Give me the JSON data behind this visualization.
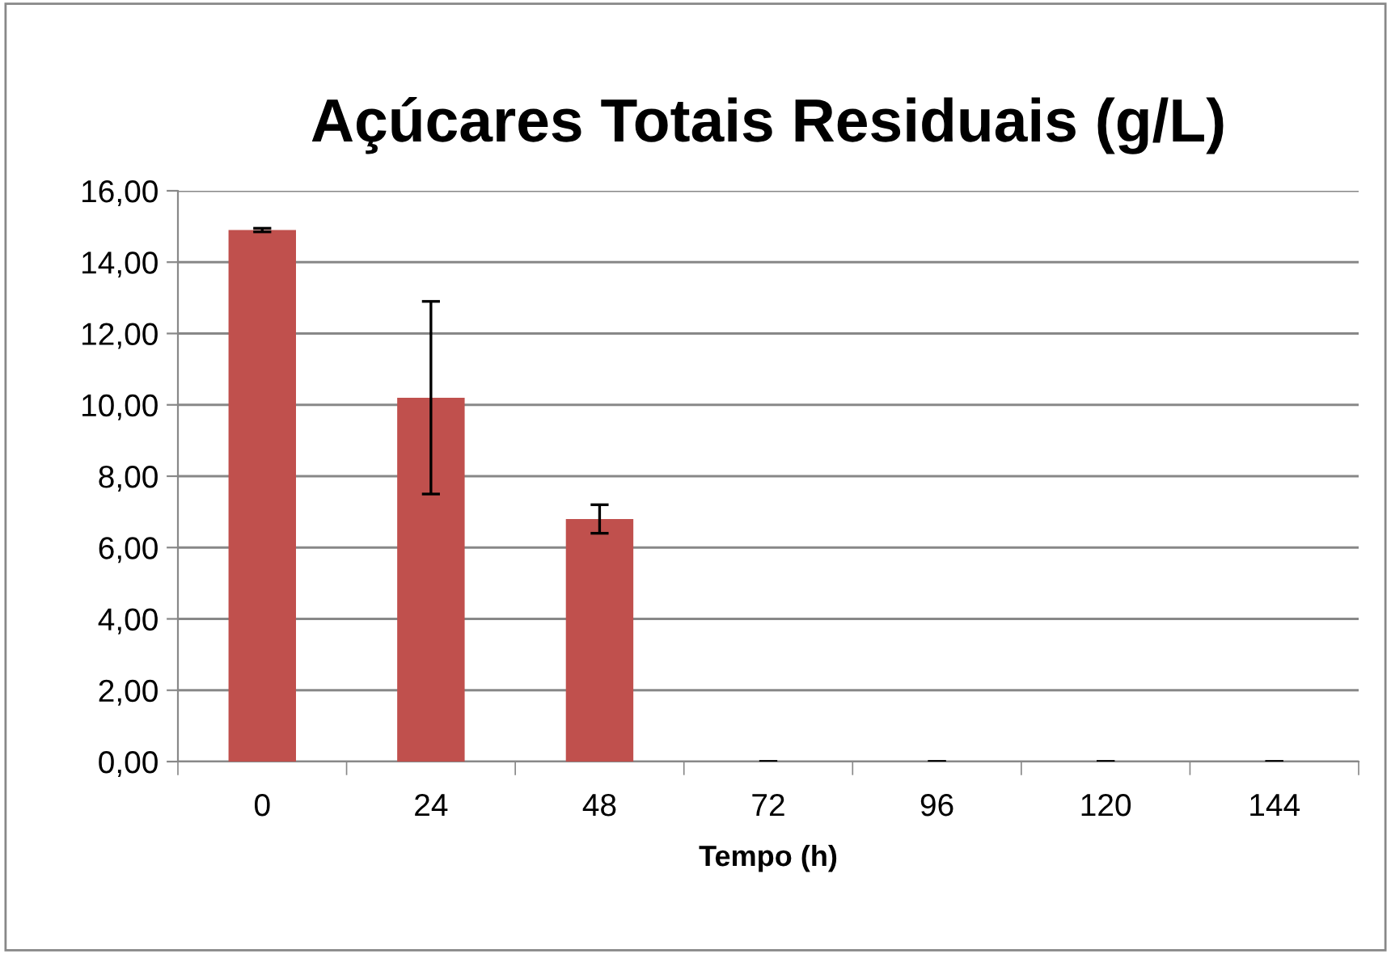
{
  "chart_data": {
    "type": "bar",
    "title": "Açúcares Totais Residuais (g/L)",
    "xlabel": "Tempo (h)",
    "categories": [
      "0",
      "24",
      "48",
      "72",
      "96",
      "120",
      "144"
    ],
    "values": [
      14.9,
      10.2,
      6.8,
      0,
      0,
      0,
      0
    ],
    "errors": [
      0.05,
      2.7,
      0.4,
      0,
      0,
      0,
      0
    ],
    "color": "#c0504d",
    "ylim": [
      0,
      16
    ],
    "yticks": [
      {
        "value": 0,
        "label": "0,00"
      },
      {
        "value": 2,
        "label": "2,00"
      },
      {
        "value": 4,
        "label": "4,00"
      },
      {
        "value": 6,
        "label": "6,00"
      },
      {
        "value": 8,
        "label": "8,00"
      },
      {
        "value": 10,
        "label": "10,00"
      },
      {
        "value": 12,
        "label": "12,00"
      },
      {
        "value": 14,
        "label": "14,00"
      },
      {
        "value": 16,
        "label": "16,00"
      }
    ],
    "grid": "y",
    "legend": false
  }
}
